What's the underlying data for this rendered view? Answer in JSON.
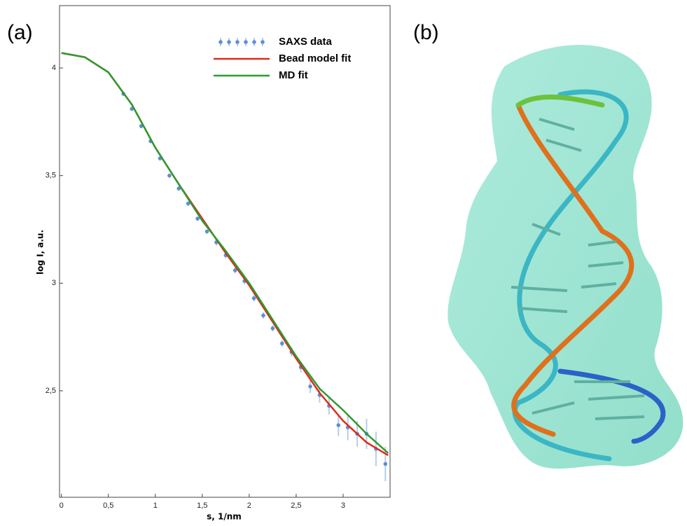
{
  "panels": [
    "(a)",
    "(b)"
  ],
  "chart_data": {
    "type": "line",
    "x_label": "s, 1/nm",
    "y_label": "log I, a.u.",
    "xlim": [
      -0.02,
      3.5
    ],
    "ylim": [
      2.005,
      4.29
    ],
    "xticks": [
      0,
      {
        "value": 0.5,
        "label": "0,5"
      },
      1,
      {
        "value": 1.5,
        "label": "1,5"
      },
      2,
      {
        "value": 2.5,
        "label": "2,5"
      },
      3
    ],
    "yticks": [
      {
        "value": 2.5,
        "label": "2,5"
      },
      3,
      {
        "value": 3.5,
        "label": "3,5"
      },
      4
    ],
    "legend": "upper right",
    "series": [
      {
        "name": "SAXS data",
        "color": "#5b8fd6",
        "style": "markers",
        "x": [
          0.66,
          0.75,
          0.85,
          0.95,
          1.05,
          1.15,
          1.25,
          1.35,
          1.45,
          1.55,
          1.65,
          1.75,
          1.85,
          1.95,
          2.05,
          2.15,
          2.25,
          2.35,
          2.45,
          2.55,
          2.65,
          2.75,
          2.85,
          2.95,
          3.05,
          3.15,
          3.25,
          3.35,
          3.45
        ],
        "values": [
          3.88,
          3.81,
          3.73,
          3.66,
          3.58,
          3.5,
          3.44,
          3.37,
          3.3,
          3.24,
          3.19,
          3.13,
          3.06,
          3.01,
          2.93,
          2.85,
          2.79,
          2.72,
          2.68,
          2.61,
          2.52,
          2.48,
          2.43,
          2.34,
          2.33,
          2.3,
          2.3,
          2.23,
          2.16
        ],
        "errors": [
          0.01,
          0.01,
          0.01,
          0.01,
          0.01,
          0.01,
          0.01,
          0.01,
          0.01,
          0.01,
          0.015,
          0.015,
          0.015,
          0.015,
          0.015,
          0.015,
          0.015,
          0.015,
          0.02,
          0.025,
          0.03,
          0.035,
          0.04,
          0.05,
          0.06,
          0.06,
          0.07,
          0.08,
          0.08
        ]
      },
      {
        "name": "Bead model fit",
        "color": "#e02a1c",
        "style": "line",
        "x": [
          0,
          0.25,
          0.5,
          0.75,
          1.0,
          1.25,
          1.5,
          1.75,
          2.0,
          2.25,
          2.5,
          2.75,
          3.0,
          3.25,
          3.48
        ],
        "values": [
          4.07,
          4.05,
          3.98,
          3.83,
          3.63,
          3.46,
          3.3,
          3.14,
          2.99,
          2.82,
          2.65,
          2.49,
          2.36,
          2.26,
          2.2
        ]
      },
      {
        "name": "MD fit",
        "color": "#2e9a2e",
        "style": "line",
        "x": [
          0,
          0.25,
          0.5,
          0.75,
          1.0,
          1.25,
          1.5,
          1.75,
          2.0,
          2.25,
          2.5,
          2.75,
          3.0,
          3.25,
          3.48
        ],
        "values": [
          4.07,
          4.05,
          3.98,
          3.83,
          3.63,
          3.46,
          3.29,
          3.15,
          3.0,
          2.83,
          2.66,
          2.51,
          2.41,
          2.3,
          2.21
        ]
      }
    ]
  }
}
